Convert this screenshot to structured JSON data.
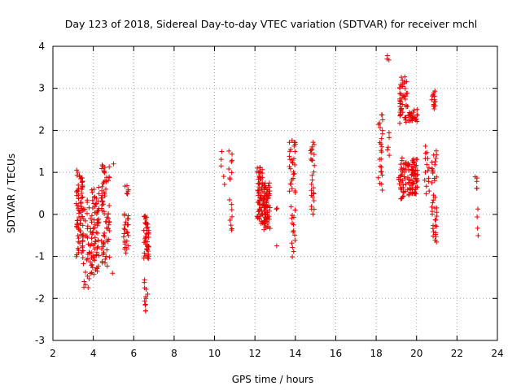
{
  "chart_data": {
    "type": "scatter",
    "title": "Day 123 of 2018, Sidereal Day-to-day VTEC variation (SDTVAR) for receiver mchl",
    "xlabel": "GPS time / hours",
    "ylabel": "SDTVAR / TECUs",
    "xlim": [
      2,
      24
    ],
    "ylim": [
      -3,
      4
    ],
    "xticks": [
      "2",
      "4",
      "6",
      "8",
      "10",
      "12",
      "14",
      "16",
      "18",
      "20",
      "22",
      "24"
    ],
    "yticks": [
      "-3",
      "-2",
      "-1",
      "0",
      "1",
      "2",
      "3",
      "4"
    ],
    "grid": true,
    "marker": "+",
    "color": "#e60000",
    "clusters": [
      {
        "x": [
          3.15,
          3.5
        ],
        "y": [
          -1.0,
          1.0
        ],
        "n": 80
      },
      {
        "x": [
          3.5,
          3.9
        ],
        "y": [
          -1.75,
          0.3
        ],
        "n": 35
      },
      {
        "x": [
          3.9,
          4.3
        ],
        "y": [
          -1.4,
          0.6
        ],
        "n": 70
      },
      {
        "x": [
          4.4,
          4.8
        ],
        "y": [
          -1.2,
          1.2
        ],
        "n": 70
      },
      {
        "x": [
          4.9,
          5.1
        ],
        "y": [
          1.2,
          1.2
        ],
        "n": 1
      },
      {
        "x": [
          4.9,
          5.0
        ],
        "y": [
          -1.4,
          -1.4
        ],
        "n": 1
      },
      {
        "x": [
          5.5,
          5.75
        ],
        "y": [
          -0.9,
          0.0
        ],
        "n": 25
      },
      {
        "x": [
          5.55,
          5.75
        ],
        "y": [
          0.5,
          0.7
        ],
        "n": 6
      },
      {
        "x": [
          6.5,
          6.75
        ],
        "y": [
          -1.1,
          0.0
        ],
        "n": 45
      },
      {
        "x": [
          6.5,
          6.7
        ],
        "y": [
          -2.3,
          -1.6
        ],
        "n": 12
      },
      {
        "x": [
          10.3,
          10.5
        ],
        "y": [
          0.75,
          1.5
        ],
        "n": 5
      },
      {
        "x": [
          10.7,
          10.9
        ],
        "y": [
          -0.4,
          0.3
        ],
        "n": 8
      },
      {
        "x": [
          10.7,
          10.9
        ],
        "y": [
          0.8,
          1.55
        ],
        "n": 8
      },
      {
        "x": [
          12.1,
          12.4
        ],
        "y": [
          -0.2,
          1.15
        ],
        "n": 60
      },
      {
        "x": [
          12.4,
          12.75
        ],
        "y": [
          -0.35,
          0.75
        ],
        "n": 70
      },
      {
        "x": [
          13.0,
          13.15
        ],
        "y": [
          -0.75,
          -0.75
        ],
        "n": 1
      },
      {
        "x": [
          13.0,
          13.15
        ],
        "y": [
          0.15,
          0.2
        ],
        "n": 2
      },
      {
        "x": [
          13.7,
          14.0
        ],
        "y": [
          -0.95,
          0.2
        ],
        "n": 15
      },
      {
        "x": [
          13.7,
          14.0
        ],
        "y": [
          0.5,
          1.8
        ],
        "n": 30
      },
      {
        "x": [
          14.75,
          14.95
        ],
        "y": [
          0.05,
          0.95
        ],
        "n": 15
      },
      {
        "x": [
          14.75,
          14.95
        ],
        "y": [
          1.2,
          1.7
        ],
        "n": 12
      },
      {
        "x": [
          18.1,
          18.35
        ],
        "y": [
          0.6,
          2.4
        ],
        "n": 25
      },
      {
        "x": [
          18.5,
          18.65
        ],
        "y": [
          3.7,
          3.8
        ],
        "n": 3
      },
      {
        "x": [
          18.5,
          18.65
        ],
        "y": [
          1.4,
          1.9
        ],
        "n": 5
      },
      {
        "x": [
          19.1,
          19.5
        ],
        "y": [
          0.4,
          1.3
        ],
        "n": 40
      },
      {
        "x": [
          19.15,
          19.55
        ],
        "y": [
          2.2,
          3.25
        ],
        "n": 45
      },
      {
        "x": [
          19.55,
          20.05
        ],
        "y": [
          0.45,
          1.3
        ],
        "n": 70
      },
      {
        "x": [
          19.6,
          20.05
        ],
        "y": [
          2.2,
          2.45
        ],
        "n": 25
      },
      {
        "x": [
          20.4,
          20.7
        ],
        "y": [
          0.5,
          1.6
        ],
        "n": 15
      },
      {
        "x": [
          20.75,
          21.0
        ],
        "y": [
          -0.65,
          0.4
        ],
        "n": 25
      },
      {
        "x": [
          20.75,
          21.0
        ],
        "y": [
          0.75,
          1.5
        ],
        "n": 15
      },
      {
        "x": [
          20.75,
          21.0
        ],
        "y": [
          2.55,
          2.9
        ],
        "n": 15
      },
      {
        "x": [
          22.9,
          23.05
        ],
        "y": [
          0.6,
          0.9
        ],
        "n": 5
      },
      {
        "x": [
          22.9,
          23.05
        ],
        "y": [
          -0.5,
          0.1
        ],
        "n": 4
      }
    ]
  }
}
